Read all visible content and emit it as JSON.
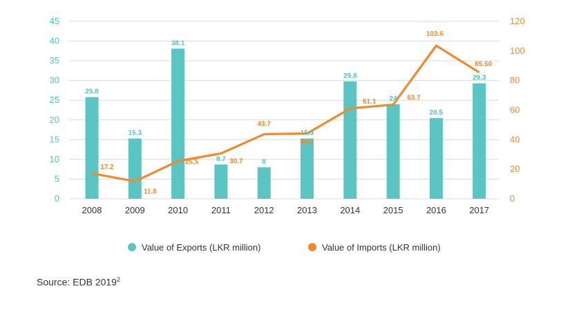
{
  "chart_data": {
    "type": "bar",
    "categories": [
      "2008",
      "2009",
      "2010",
      "2011",
      "2012",
      "2013",
      "2014",
      "2015",
      "2016",
      "2017"
    ],
    "series": [
      {
        "name": "Value of Exports (LKR million)",
        "type": "bar",
        "axis": "left",
        "values": [
          25.8,
          15.3,
          38.1,
          8.7,
          8,
          15.3,
          29.8,
          24,
          20.5,
          29.3
        ],
        "labels": [
          "25.8",
          "15.3",
          "38.1",
          "8.7",
          "8",
          "15.3",
          "29.8",
          "24",
          "20.5",
          "29.3"
        ],
        "color": "#5bc5c4"
      },
      {
        "name": "Value of Imports (LKR million)",
        "type": "line",
        "axis": "right",
        "values": [
          17.2,
          11.8,
          25.5,
          30.7,
          43.7,
          44.2,
          61.1,
          63.7,
          103.6,
          85.5
        ],
        "labels": [
          "17.2",
          "11.8",
          "25.5",
          "30.7",
          "43.7",
          "44.2",
          "61.1",
          "63.7",
          "103.6",
          "85.50"
        ],
        "color": "#f08a2a"
      }
    ],
    "y_left": {
      "ticks": [
        0,
        5,
        10,
        15,
        20,
        25,
        30,
        35,
        40,
        45
      ],
      "ylim": [
        0,
        45
      ]
    },
    "y_right": {
      "ticks": [
        0,
        20,
        40,
        60,
        80,
        100,
        120
      ],
      "ylim": [
        0,
        120
      ]
    },
    "grid": true,
    "legend_position": "bottom-center"
  },
  "source_text": "Source: EDB 2019",
  "source_sup": "2"
}
